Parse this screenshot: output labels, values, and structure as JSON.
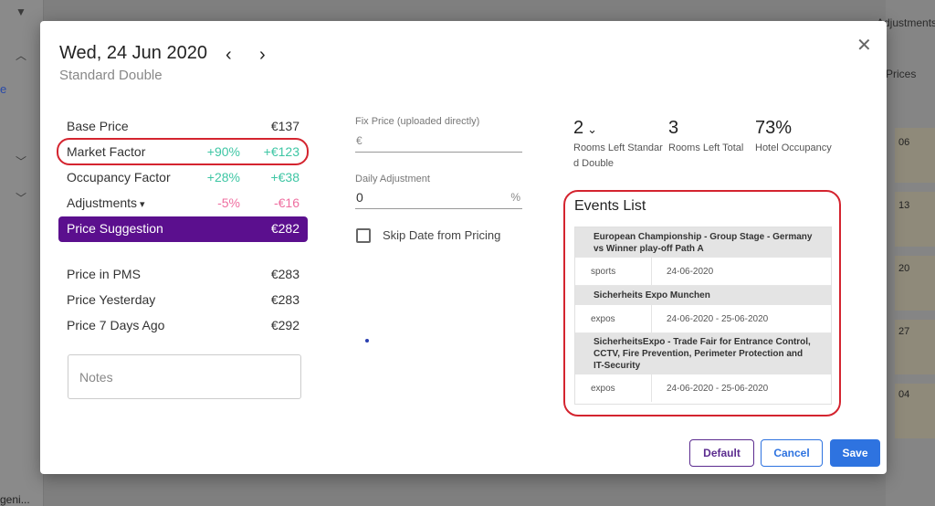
{
  "background": {
    "right_header": "Adjustments",
    "right_tab": "Prices",
    "days": [
      "06",
      "13",
      "20",
      "27",
      "04"
    ],
    "left_bottom_text": "geni..."
  },
  "header": {
    "date": "Wed, 24 Jun 2020",
    "room_type": "Standard Double",
    "prev_icon": "‹",
    "next_icon": "›",
    "close_icon": "✕"
  },
  "prices": {
    "base": {
      "label": "Base Price",
      "value": "€137"
    },
    "market": {
      "label": "Market Factor",
      "percent": "+90%",
      "value": "+€123"
    },
    "occupancy": {
      "label": "Occupancy Factor",
      "percent": "+28%",
      "value": "+€38"
    },
    "adjustments": {
      "label": "Adjustments",
      "percent": "-5%",
      "value": "-€16"
    },
    "suggestion": {
      "label": "Price Suggestion",
      "value": "€282"
    },
    "pms": {
      "label": "Price in PMS",
      "value": "€283"
    },
    "yesterday": {
      "label": "Price Yesterday",
      "value": "€283"
    },
    "seven_days": {
      "label": "Price 7 Days Ago",
      "value": "€292"
    }
  },
  "notes": {
    "placeholder": "Notes"
  },
  "fix_price": {
    "label": "Fix Price (uploaded directly)",
    "prefix": "€",
    "value": ""
  },
  "daily_adjustment": {
    "label": "Daily Adjustment",
    "value": "0",
    "suffix": "%"
  },
  "skip": {
    "label": "Skip Date from Pricing",
    "checked": false
  },
  "stats": {
    "rooms_left_type": {
      "value": "2",
      "label": "Rooms Left Standard Double"
    },
    "rooms_left_total": {
      "value": "3",
      "label": "Rooms Left Total"
    },
    "occupancy": {
      "value": "73%",
      "label": "Hotel Occupancy"
    }
  },
  "events": {
    "title": "Events List",
    "items": [
      {
        "name": "European Championship - Group Stage - Germany vs Winner play-off Path A",
        "category": "sports",
        "date": "24-06-2020"
      },
      {
        "name": "Sicherheits Expo Munchen",
        "category": "expos",
        "date": "24-06-2020 - 25-06-2020"
      },
      {
        "name": "SicherheitsExpo - Trade Fair for Entrance Control, CCTV, Fire Prevention, Perimeter Protection and IT-Security",
        "category": "expos",
        "date": "24-06-2020 - 25-06-2020"
      }
    ]
  },
  "buttons": {
    "default": "Default",
    "cancel": "Cancel",
    "save": "Save"
  },
  "colors": {
    "accent": "#5b0f8e",
    "primary": "#2e73e0",
    "positive": "#3ec6a4",
    "negative": "#ef6fa0",
    "highlight": "#d4242f"
  }
}
